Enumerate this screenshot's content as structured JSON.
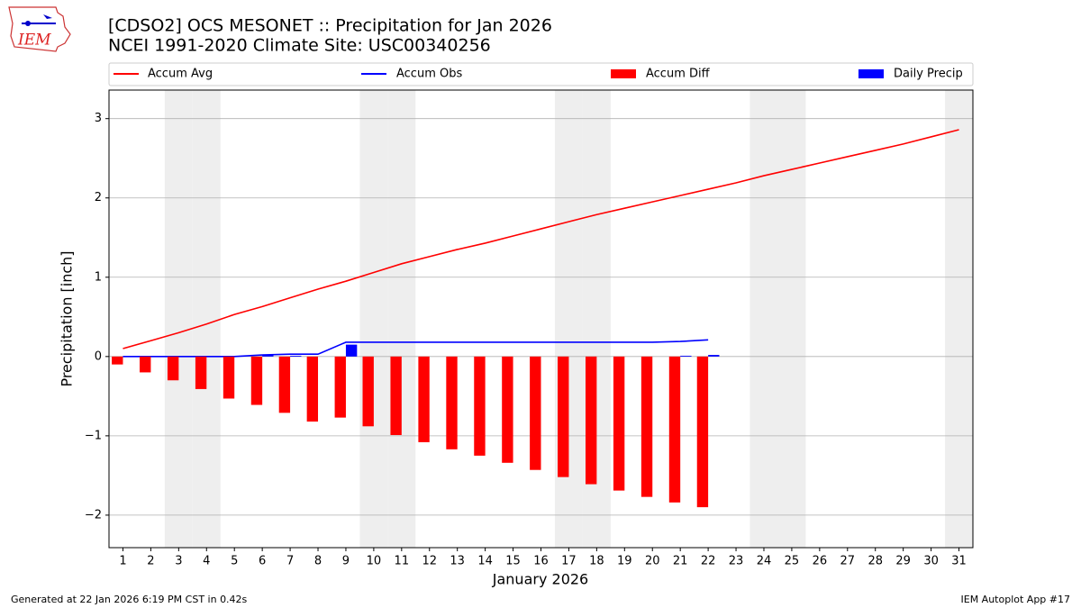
{
  "logo_text": "IEM",
  "chart_data": {
    "type": "mixed",
    "title": "[CDSO2] OCS MESONET :: Precipitation for Jan 2026",
    "subtitle": "NCEI 1991-2020 Climate Site: USC00340256",
    "xlabel": "January 2026",
    "ylabel": "Precipitation [inch]",
    "footer_left": "Generated at 22 Jan 2026 6:19 PM CST in 0.42s",
    "footer_right": "IEM Autoplot App #17",
    "x": [
      1,
      2,
      3,
      4,
      5,
      6,
      7,
      8,
      9,
      10,
      11,
      12,
      13,
      14,
      15,
      16,
      17,
      18,
      19,
      20,
      21,
      22,
      23,
      24,
      25,
      26,
      27,
      28,
      29,
      30,
      31
    ],
    "xlim": [
      0.5,
      31.5
    ],
    "xticks": [
      1,
      2,
      3,
      4,
      5,
      6,
      7,
      8,
      9,
      10,
      11,
      12,
      13,
      14,
      15,
      16,
      17,
      18,
      19,
      20,
      21,
      22,
      23,
      24,
      25,
      26,
      27,
      28,
      29,
      30,
      31
    ],
    "ylim": [
      -2.41,
      3.36
    ],
    "yticks": [
      {
        "value": -2,
        "label": "−2"
      },
      {
        "value": -1,
        "label": "−1"
      },
      0,
      1,
      2,
      3
    ],
    "grid": true,
    "shaded_days": [
      3,
      4,
      10,
      11,
      17,
      18,
      24,
      25,
      31
    ],
    "shade_color": "#eeeeee",
    "series": [
      {
        "name": "Accum Avg",
        "type": "line",
        "color": "#ff0000",
        "values": [
          0.1,
          0.2,
          0.3,
          0.41,
          0.53,
          0.63,
          0.74,
          0.85,
          0.95,
          1.06,
          1.17,
          1.26,
          1.35,
          1.43,
          1.52,
          1.61,
          1.7,
          1.79,
          1.87,
          1.95,
          2.03,
          2.11,
          2.19,
          2.28,
          2.36,
          2.44,
          2.52,
          2.6,
          2.68,
          2.77,
          2.86
        ]
      },
      {
        "name": "Accum Obs",
        "type": "line",
        "color": "#0000ff",
        "values": [
          0,
          0,
          0,
          0,
          0,
          0.02,
          0.03,
          0.03,
          0.18,
          0.18,
          0.18,
          0.18,
          0.18,
          0.18,
          0.18,
          0.18,
          0.18,
          0.18,
          0.18,
          0.18,
          0.19,
          0.21,
          null,
          null,
          null,
          null,
          null,
          null,
          null,
          null,
          null
        ]
      },
      {
        "name": "Accum Diff",
        "type": "bar",
        "color": "#ff0000",
        "values": [
          -0.1,
          -0.2,
          -0.3,
          -0.41,
          -0.53,
          -0.61,
          -0.71,
          -0.82,
          -0.77,
          -0.88,
          -0.99,
          -1.08,
          -1.17,
          -1.25,
          -1.34,
          -1.43,
          -1.52,
          -1.61,
          -1.69,
          -1.77,
          -1.84,
          -1.9,
          null,
          null,
          null,
          null,
          null,
          null,
          null,
          null,
          null
        ]
      },
      {
        "name": "Daily Precip",
        "type": "bar",
        "color": "#0000ff",
        "values": [
          0,
          0,
          0,
          0,
          0,
          0.02,
          0.01,
          0,
          0.15,
          0,
          0,
          0,
          0,
          0,
          0,
          0,
          0,
          0,
          0,
          0,
          0.01,
          0.02,
          null,
          null,
          null,
          null,
          null,
          null,
          null,
          null,
          null
        ]
      }
    ]
  }
}
